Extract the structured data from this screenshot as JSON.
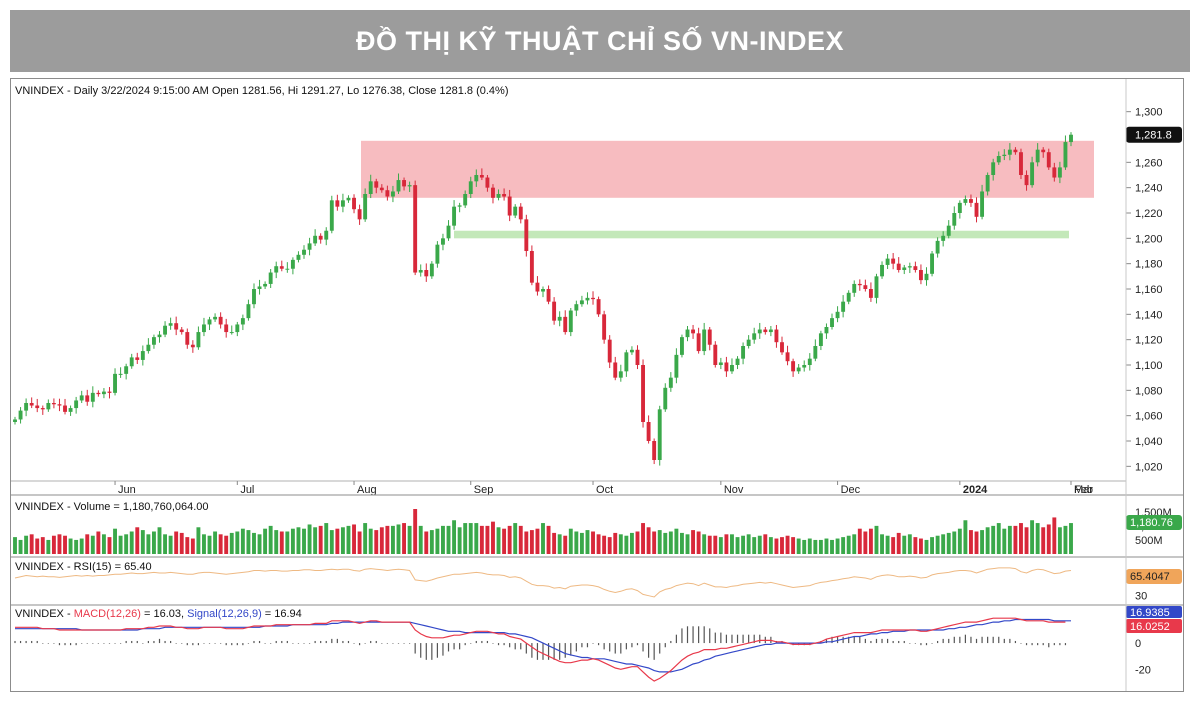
{
  "banner_title": "ĐỒ THỊ KỸ THUẬT CHỈ SỐ VN-INDEX",
  "colors": {
    "up": "#3aa84a",
    "down": "#d8283a",
    "resistance_zone": "#f4a6ab",
    "support_zone": "#b8e4ad",
    "macd": "#e8394b",
    "signal": "#3348c8",
    "rsi": "#e8a25a",
    "price_tag": "#111111"
  },
  "chart_data": [
    {
      "type": "candlestick",
      "header": "VNINDEX - Daily 3/22/2024 9:15:00 AM Open 1281.56, Hi 1291.27, Lo 1276.38, Close 1281.8 (0.4%)",
      "ylim": [
        1010,
        1310
      ],
      "yticks": [
        "1,300",
        "1,260",
        "1,240",
        "1,220",
        "1,200",
        "1,180",
        "1,160",
        "1,140",
        "1,120",
        "1,100",
        "1,080",
        "1,060",
        "1,040",
        "1,020"
      ],
      "x_labels": [
        "Jun",
        "Jul",
        "Aug",
        "Sep",
        "Oct",
        "Nov",
        "Dec",
        "2024",
        "Feb",
        "Mar"
      ],
      "last_price_label": "1,281.8",
      "resistance_zone": [
        1232,
        1277
      ],
      "support_zone": [
        1200,
        1206
      ],
      "closes": [
        1057,
        1064,
        1070,
        1068,
        1066,
        1065,
        1070,
        1069,
        1068,
        1063,
        1066,
        1072,
        1076,
        1071,
        1078,
        1077,
        1079,
        1078,
        1093,
        1093,
        1099,
        1106,
        1104,
        1111,
        1116,
        1122,
        1124,
        1131,
        1133,
        1128,
        1126,
        1116,
        1114,
        1126,
        1132,
        1136,
        1138,
        1132,
        1126,
        1126,
        1132,
        1137,
        1148,
        1160,
        1162,
        1164,
        1173,
        1178,
        1176,
        1176,
        1183,
        1187,
        1191,
        1196,
        1202,
        1199,
        1206,
        1230,
        1225,
        1230,
        1232,
        1223,
        1215,
        1235,
        1245,
        1240,
        1238,
        1233,
        1237,
        1246,
        1241,
        1242,
        1173,
        1175,
        1170,
        1180,
        1195,
        1200,
        1210,
        1225,
        1226,
        1235,
        1245,
        1250,
        1248,
        1240,
        1232,
        1235,
        1233,
        1218,
        1225,
        1215,
        1190,
        1165,
        1158,
        1160,
        1150,
        1135,
        1138,
        1126,
        1143,
        1148,
        1151,
        1153,
        1152,
        1140,
        1120,
        1102,
        1090,
        1095,
        1110,
        1112,
        1100,
        1055,
        1040,
        1025,
        1065,
        1082,
        1090,
        1108,
        1122,
        1128,
        1125,
        1111,
        1128,
        1116,
        1100,
        1102,
        1095,
        1100,
        1105,
        1115,
        1120,
        1125,
        1128,
        1126,
        1128,
        1118,
        1110,
        1103,
        1095,
        1098,
        1100,
        1105,
        1115,
        1125,
        1130,
        1137,
        1142,
        1150,
        1157,
        1164,
        1163,
        1160,
        1153,
        1170,
        1179,
        1184,
        1180,
        1175,
        1177,
        1178,
        1175,
        1167,
        1172,
        1188,
        1198,
        1202,
        1210,
        1220,
        1228,
        1231,
        1228,
        1217,
        1237,
        1250,
        1260,
        1265,
        1266,
        1270,
        1268,
        1250,
        1242,
        1260,
        1270,
        1268,
        1256,
        1248,
        1256,
        1276,
        1281.8
      ],
      "volume": {
        "header": "VNINDEX - Volume = 1,180,760,064.00",
        "yticks": [
          "1,500M",
          "1,000M",
          "500M"
        ],
        "last_label": "1,180.76",
        "ylim": [
          0,
          1600
        ],
        "values": [
          600,
          500,
          650,
          700,
          550,
          600,
          500,
          650,
          700,
          650,
          550,
          500,
          550,
          700,
          650,
          800,
          700,
          600,
          900,
          650,
          700,
          800,
          950,
          850,
          700,
          800,
          950,
          700,
          650,
          800,
          750,
          600,
          550,
          950,
          700,
          650,
          800,
          700,
          650,
          750,
          800,
          900,
          850,
          750,
          700,
          900,
          1000,
          850,
          800,
          800,
          900,
          950,
          900,
          1050,
          950,
          1000,
          1100,
          850,
          900,
          950,
          1000,
          1050,
          800,
          1100,
          900,
          850,
          950,
          1000,
          1000,
          1050,
          1100,
          1000,
          1600,
          1000,
          800,
          850,
          900,
          1000,
          1000,
          1200,
          950,
          1100,
          1100,
          1100,
          1000,
          1000,
          1150,
          950,
          900,
          1000,
          1100,
          1000,
          800,
          850,
          900,
          1100,
          1000,
          750,
          700,
          650,
          900,
          800,
          750,
          850,
          800,
          700,
          650,
          600,
          750,
          700,
          650,
          750,
          800,
          1100,
          950,
          800,
          850,
          750,
          800,
          900,
          750,
          700,
          850,
          800,
          700,
          650,
          650,
          600,
          700,
          700,
          600,
          650,
          700,
          600,
          650,
          700,
          600,
          550,
          600,
          650,
          600,
          550,
          500,
          550,
          500,
          500,
          550,
          500,
          550,
          600,
          650,
          700,
          900,
          800,
          900,
          1000,
          700,
          650,
          600,
          750,
          650,
          700,
          600,
          550,
          500,
          600,
          650,
          700,
          750,
          800,
          900,
          1200,
          850,
          800,
          850,
          950,
          1000,
          1100,
          900,
          1000,
          1000,
          1100,
          950,
          1200,
          1100,
          950,
          1050,
          1300,
          950,
          1000,
          1100,
          1000,
          1000,
          1050,
          1500,
          950,
          1200,
          1200
        ]
      },
      "rsi": {
        "header": "VNINDEX - RSI(15) = 65.40",
        "yticks": [
          "30"
        ],
        "last_label": "65.4047",
        "ylim": [
          20,
          85
        ],
        "values": [
          58,
          60,
          62,
          61,
          60,
          61,
          60,
          60,
          59,
          60,
          61,
          62,
          61,
          62,
          61,
          62,
          62,
          63,
          64,
          64,
          65,
          66,
          65,
          65,
          66,
          67,
          66,
          66,
          67,
          66,
          65,
          64,
          64,
          66,
          67,
          67,
          66,
          65,
          64,
          65,
          66,
          67,
          68,
          70,
          70,
          69,
          70,
          70,
          69,
          69,
          70,
          70,
          71,
          71,
          70,
          70,
          71,
          72,
          71,
          72,
          72,
          70,
          69,
          72,
          73,
          72,
          71,
          70,
          71,
          72,
          71,
          70,
          55,
          54,
          53,
          55,
          58,
          60,
          62,
          64,
          64,
          65,
          66,
          67,
          66,
          64,
          63,
          63,
          62,
          59,
          60,
          58,
          53,
          48,
          46,
          46,
          45,
          42,
          43,
          41,
          45,
          46,
          47,
          47,
          46,
          44,
          40,
          37,
          35,
          37,
          40,
          41,
          38,
          32,
          30,
          28,
          36,
          40,
          42,
          46,
          48,
          50,
          49,
          46,
          50,
          47,
          44,
          44,
          43,
          45,
          46,
          48,
          49,
          50,
          51,
          50,
          51,
          49,
          47,
          45,
          43,
          44,
          45,
          46,
          49,
          51,
          52,
          54,
          55,
          57,
          58,
          60,
          59,
          58,
          56,
          60,
          62,
          63,
          62,
          60,
          60,
          61,
          60,
          58,
          59,
          63,
          65,
          66,
          67,
          69,
          70,
          70,
          69,
          66,
          69,
          72,
          73,
          74,
          74,
          74,
          73,
          68,
          66,
          70,
          72,
          71,
          68,
          65,
          66,
          69,
          70
        ]
      },
      "macd": {
        "header_prefix": "VNINDEX - ",
        "macd_label": "MACD(12,26)",
        "macd_value": " = 16.03, ",
        "signal_label": "Signal(12,26,9)",
        "signal_value": " = 16.94",
        "yticks": [
          "0",
          "-20"
        ],
        "tag_macd": "16.0252",
        "tag_signal": "16.9385",
        "ylim": [
          -32,
          26
        ],
        "macd": [
          12,
          12,
          12,
          12,
          12,
          11,
          11,
          11,
          10,
          10,
          10,
          10,
          10,
          10,
          10,
          10,
          10,
          10,
          10,
          10,
          11,
          11,
          11,
          11,
          12,
          12,
          13,
          13,
          13,
          12,
          12,
          11,
          11,
          11,
          12,
          12,
          12,
          12,
          11,
          11,
          11,
          11,
          12,
          13,
          13,
          13,
          13,
          14,
          14,
          14,
          14,
          14,
          14,
          14,
          15,
          15,
          15,
          17,
          17,
          17,
          17,
          16,
          15,
          16,
          17,
          17,
          16,
          16,
          16,
          16,
          16,
          16,
          10,
          7,
          5,
          4,
          4,
          4,
          5,
          6,
          6,
          7,
          8,
          9,
          9,
          9,
          8,
          7,
          7,
          5,
          4,
          3,
          0,
          -3,
          -6,
          -8,
          -10,
          -12,
          -14,
          -15,
          -15,
          -14,
          -13,
          -13,
          -12,
          -13,
          -15,
          -17,
          -19,
          -20,
          -19,
          -18,
          -18,
          -22,
          -26,
          -29,
          -27,
          -24,
          -21,
          -17,
          -13,
          -10,
          -8,
          -7,
          -5,
          -5,
          -5,
          -4,
          -4,
          -3,
          -2,
          -1,
          0,
          1,
          2,
          2,
          2,
          1,
          1,
          0,
          -1,
          -1,
          -1,
          -1,
          0,
          1,
          3,
          4,
          5,
          6,
          7,
          8,
          8,
          8,
          8,
          9,
          10,
          10,
          10,
          10,
          10,
          10,
          10,
          9,
          9,
          10,
          11,
          12,
          13,
          14,
          15,
          16,
          16,
          16,
          17,
          18,
          19,
          19,
          19,
          19,
          19,
          18,
          17,
          17,
          17,
          17,
          16,
          16,
          16,
          16
        ],
        "signal": [
          11,
          11,
          11,
          11,
          11,
          11,
          11,
          11,
          11,
          11,
          11,
          11,
          10,
          10,
          10,
          10,
          10,
          10,
          10,
          10,
          10,
          10,
          10,
          11,
          11,
          11,
          11,
          12,
          12,
          12,
          12,
          12,
          12,
          12,
          12,
          12,
          12,
          12,
          12,
          12,
          12,
          12,
          12,
          12,
          12,
          13,
          13,
          13,
          13,
          13,
          14,
          14,
          14,
          14,
          14,
          14,
          14,
          15,
          15,
          16,
          16,
          16,
          16,
          16,
          16,
          16,
          16,
          16,
          16,
          16,
          16,
          16,
          15,
          14,
          13,
          12,
          11,
          10,
          9,
          9,
          9,
          8,
          8,
          8,
          8,
          8,
          8,
          8,
          8,
          7,
          7,
          6,
          5,
          4,
          2,
          0,
          -2,
          -4,
          -6,
          -8,
          -9,
          -10,
          -11,
          -11,
          -12,
          -12,
          -12,
          -13,
          -14,
          -15,
          -16,
          -16,
          -17,
          -18,
          -19,
          -21,
          -22,
          -22,
          -22,
          -21,
          -20,
          -18,
          -16,
          -15,
          -13,
          -12,
          -10,
          -9,
          -8,
          -7,
          -6,
          -5,
          -4,
          -3,
          -2,
          -1,
          -1,
          0,
          0,
          0,
          0,
          0,
          0,
          0,
          0,
          0,
          1,
          1,
          2,
          3,
          4,
          5,
          5,
          6,
          7,
          7,
          8,
          8,
          9,
          9,
          9,
          10,
          10,
          10,
          10,
          10,
          10,
          10,
          11,
          11,
          12,
          12,
          13,
          14,
          14,
          15,
          16,
          16,
          17,
          17,
          18,
          18,
          18,
          18,
          18,
          18,
          18,
          17,
          17,
          17,
          17,
          17,
          17
        ]
      }
    }
  ]
}
